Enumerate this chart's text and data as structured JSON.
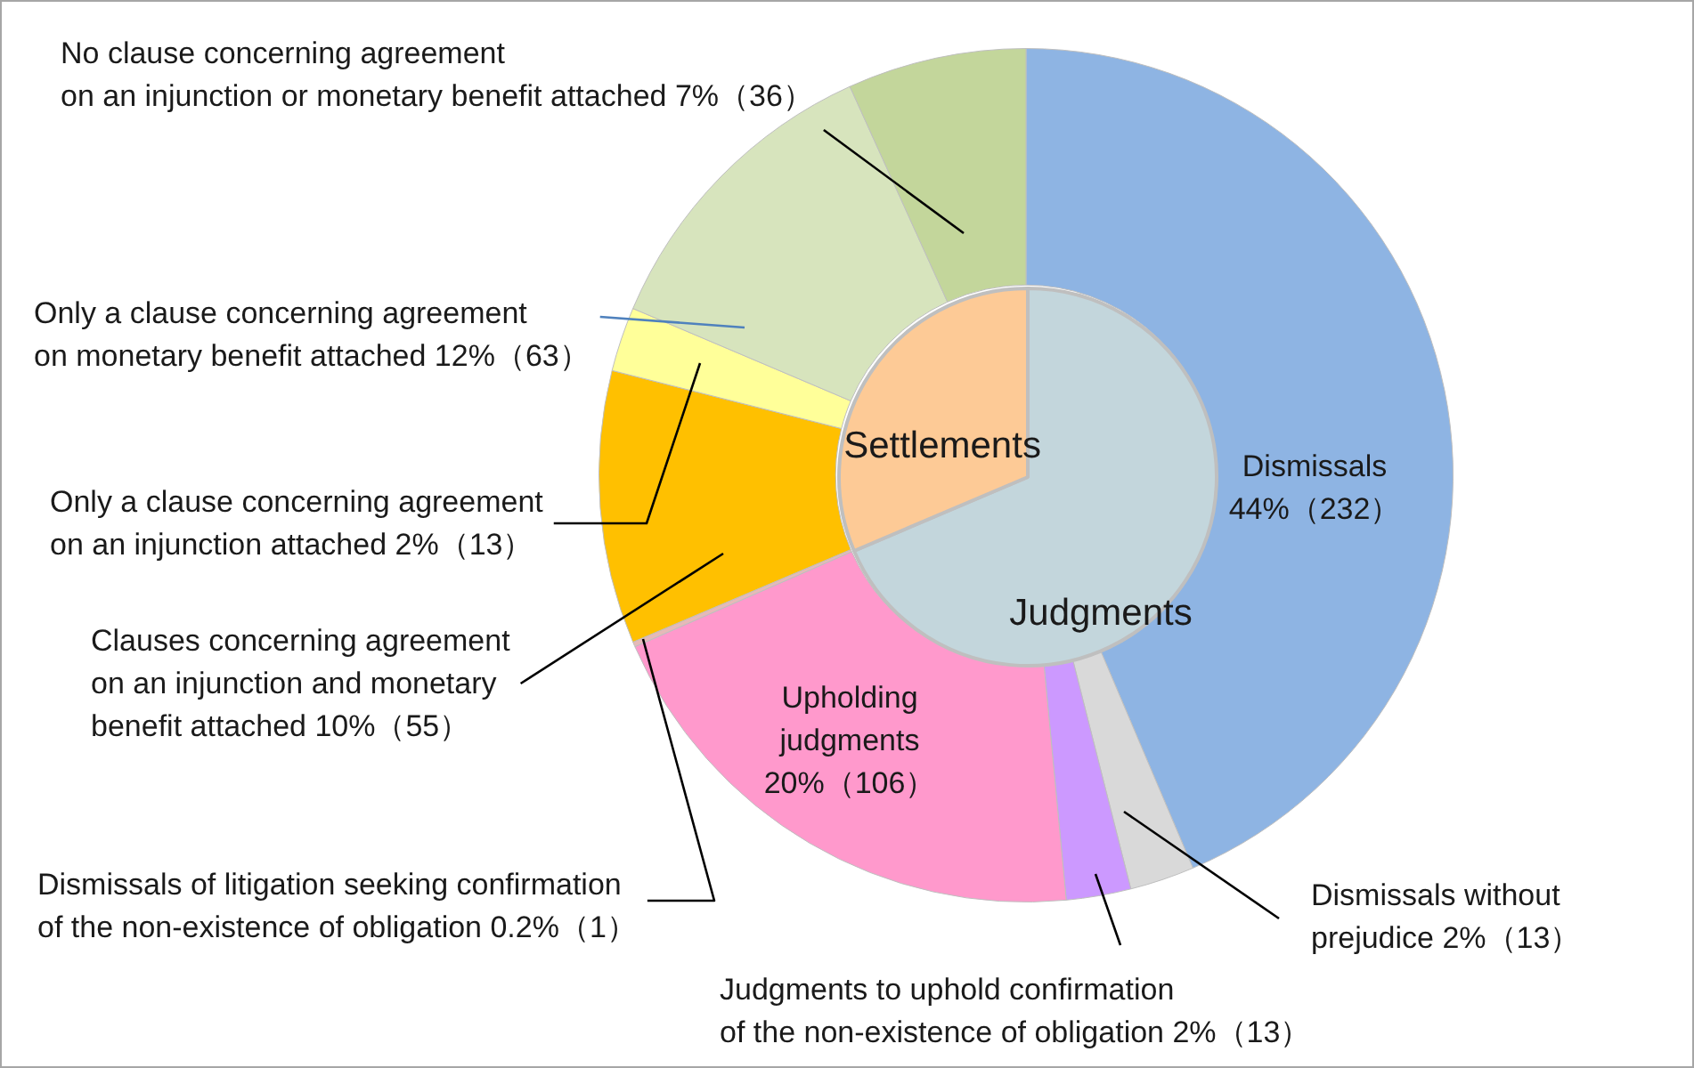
{
  "chart_data": [
    {
      "type": "donut",
      "categories": [
        "Dismissals",
        "Dismissals without\nprejudice",
        "Judgments to uphold confirmation\nof the non-existence of obligation",
        "Upholding\njudgments",
        "Dismissals of litigation seeking confirmation\nof the non-existence of obligation",
        "Clauses concerning agreement\non an injunction and monetary\nbenefit attached",
        "Only a clause concerning agreement\non an injunction attached",
        "Only a clause concerning agreement\non monetary benefit attached",
        "No clause concerning agreement\non an injunction or monetary benefit attached"
      ],
      "values": [
        232,
        13,
        13,
        106,
        1,
        55,
        13,
        63,
        36
      ],
      "value_labels": [
        "44%（232）",
        "2%（13）",
        "2%（13）",
        "20%（106）",
        "0.2%（1）",
        "10%（55）",
        "2%（13）",
        "12%（63）",
        "7%（36）"
      ],
      "colors": [
        "#8eb4e3",
        "#d9d9d9",
        "#cc99ff",
        "#ff99cc",
        "#e6b9b8",
        "#ffc000",
        "#ffff99",
        "#d7e4bd",
        "#c3d69b"
      ]
    },
    {
      "type": "pie",
      "categories": [
        "Judgments",
        "Settlements"
      ],
      "values": [
        68.6,
        31.4
      ],
      "colors": [
        "#c3d6dc",
        "#fdca96"
      ]
    }
  ]
}
